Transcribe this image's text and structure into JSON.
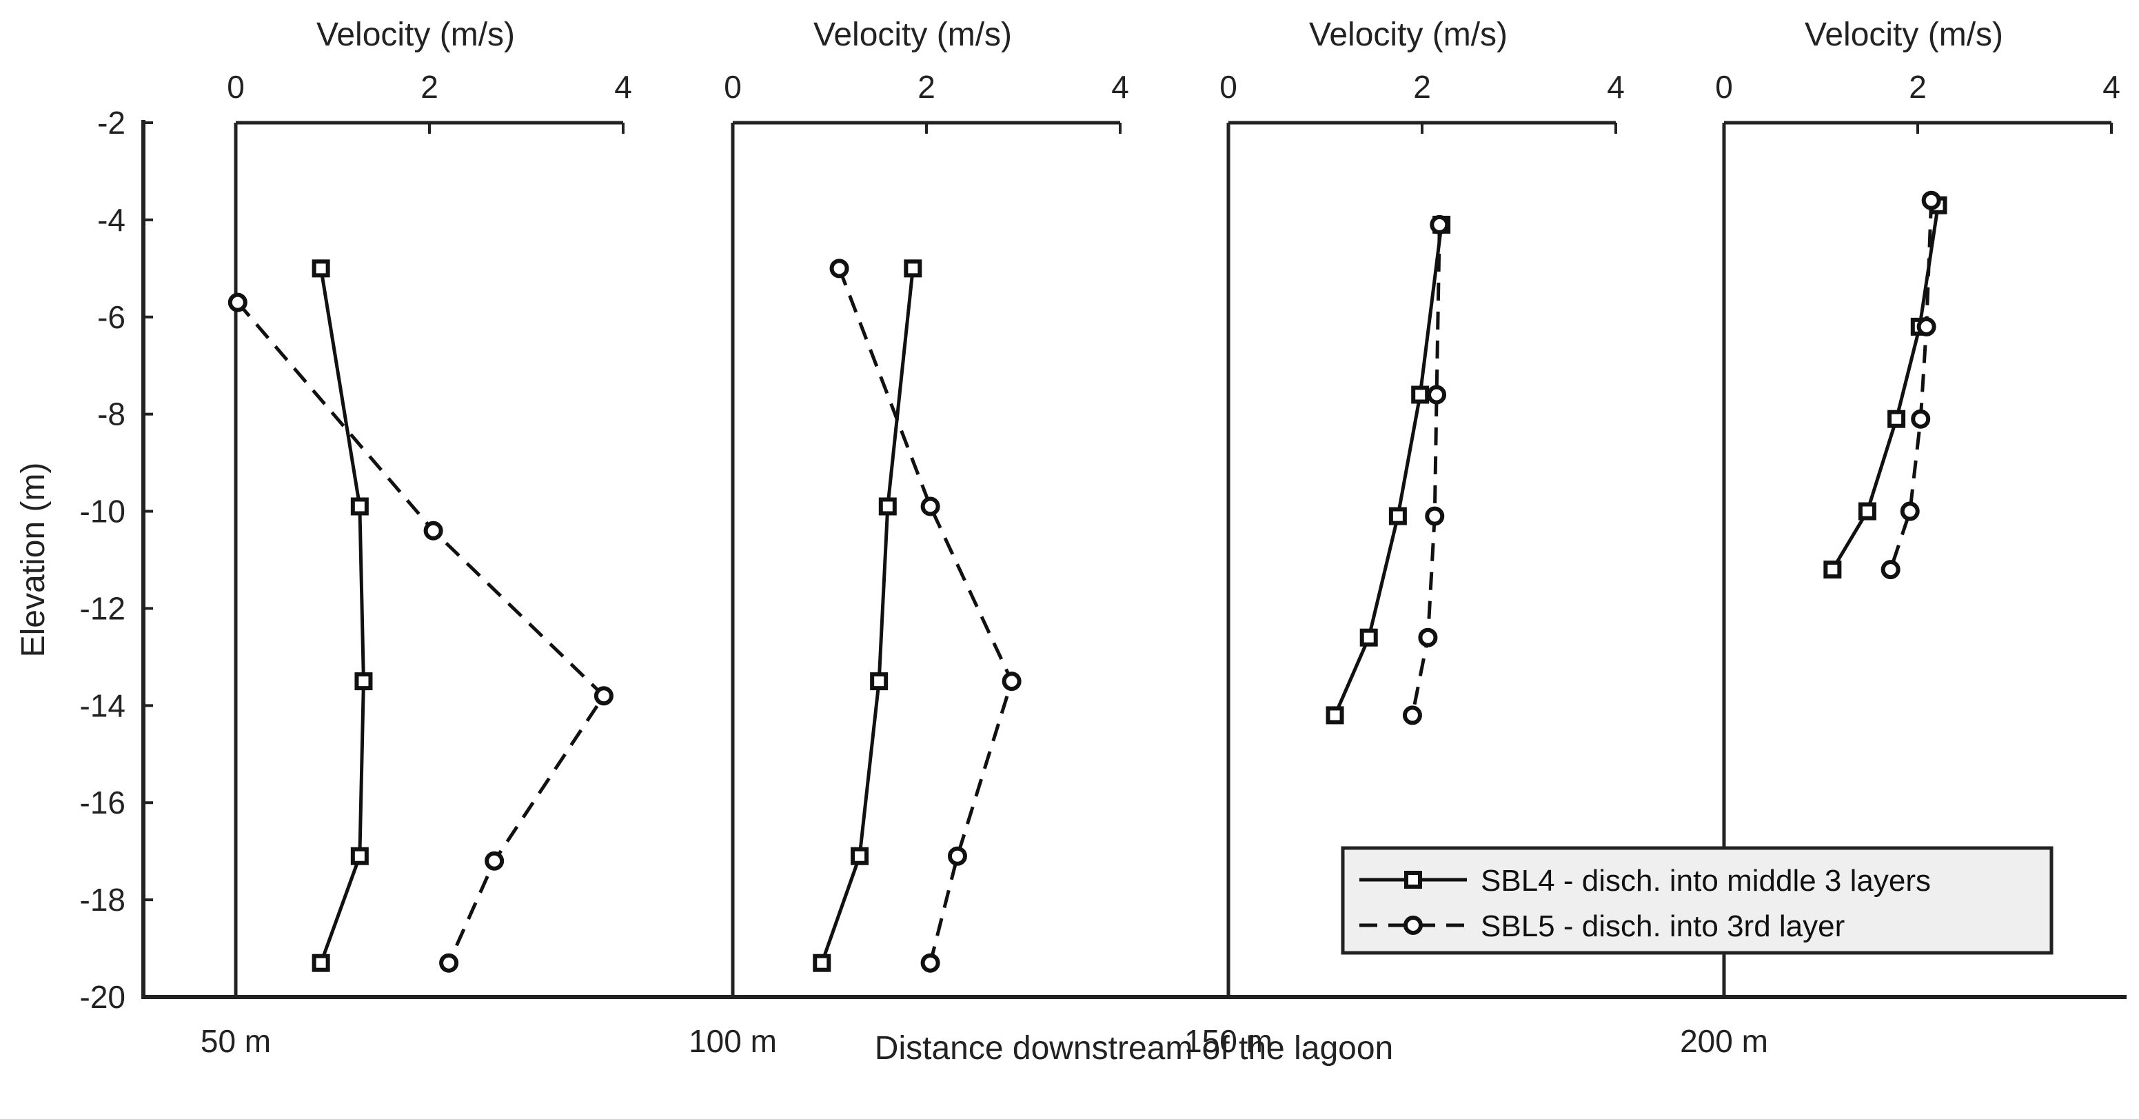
{
  "chart_data": {
    "type": "line",
    "title": "",
    "xlabel": "Distance downstream of the lagoon",
    "ylabel": "Elevation (m)",
    "top_axis_label": "Velocity (m/s)",
    "velocity_ticks": [
      "0",
      "2",
      "4"
    ],
    "velocity_range": [
      0,
      4
    ],
    "ylim": [
      -20,
      -2
    ],
    "y_ticks": [
      "-2",
      "-4",
      "-6",
      "-8",
      "-10",
      "-12",
      "-14",
      "-16",
      "-18",
      "-20"
    ],
    "legend_position": "bottom-right",
    "profiles": [
      {
        "station_label": "50 m",
        "series": [
          {
            "name": "SBL4 - disch. into middle 3 layers",
            "style": "solid-square",
            "velocity": [
              0.88,
              1.28,
              1.32,
              1.28,
              0.88
            ],
            "elevation": [
              -5.0,
              -9.9,
              -13.5,
              -17.1,
              -19.3
            ]
          },
          {
            "name": "SBL5 - disch. into 3rd layer",
            "style": "dashed-circle",
            "velocity": [
              0.02,
              2.04,
              3.8,
              2.67,
              2.2
            ],
            "elevation": [
              -5.7,
              -10.4,
              -13.8,
              -17.2,
              -19.3
            ]
          }
        ]
      },
      {
        "station_label": "100 m",
        "series": [
          {
            "name": "SBL4 - disch. into middle 3 layers",
            "style": "solid-square",
            "velocity": [
              1.86,
              1.6,
              1.51,
              1.31,
              0.92
            ],
            "elevation": [
              -5.0,
              -9.9,
              -13.5,
              -17.1,
              -19.3
            ]
          },
          {
            "name": "SBL5 - disch. into 3rd layer",
            "style": "dashed-circle",
            "velocity": [
              1.1,
              2.04,
              2.88,
              2.32,
              2.04
            ],
            "elevation": [
              -5.0,
              -9.9,
              -13.5,
              -17.1,
              -19.3
            ]
          }
        ]
      },
      {
        "station_label": "150 m",
        "series": [
          {
            "name": "SBL4 - disch. into middle 3 layers",
            "style": "solid-square",
            "velocity": [
              2.2,
              1.98,
              1.75,
              1.45,
              1.1
            ],
            "elevation": [
              -4.1,
              -7.6,
              -10.1,
              -12.6,
              -14.2
            ]
          },
          {
            "name": "SBL5 - disch. into 3rd layer",
            "style": "dashed-circle",
            "velocity": [
              2.18,
              2.15,
              2.13,
              2.06,
              1.9
            ],
            "elevation": [
              -4.1,
              -7.6,
              -10.1,
              -12.6,
              -14.2
            ]
          }
        ]
      },
      {
        "station_label": "200 m",
        "series": [
          {
            "name": "SBL4 - disch. into middle 3 layers",
            "style": "solid-square",
            "velocity": [
              2.21,
              2.02,
              1.78,
              1.48,
              1.12
            ],
            "elevation": [
              -3.7,
              -6.2,
              -8.1,
              -10.0,
              -11.2
            ]
          },
          {
            "name": "SBL5 - disch. into 3rd layer",
            "style": "dashed-circle",
            "velocity": [
              2.14,
              2.09,
              2.03,
              1.92,
              1.72
            ],
            "elevation": [
              -3.6,
              -6.2,
              -8.1,
              -10.0,
              -11.2
            ]
          }
        ]
      }
    ],
    "legend": [
      {
        "label": "SBL4 - disch. into middle 3 layers",
        "style": "solid-square"
      },
      {
        "label": "SBL5 - disch. into 3rd layer",
        "style": "dashed-circle"
      }
    ]
  }
}
